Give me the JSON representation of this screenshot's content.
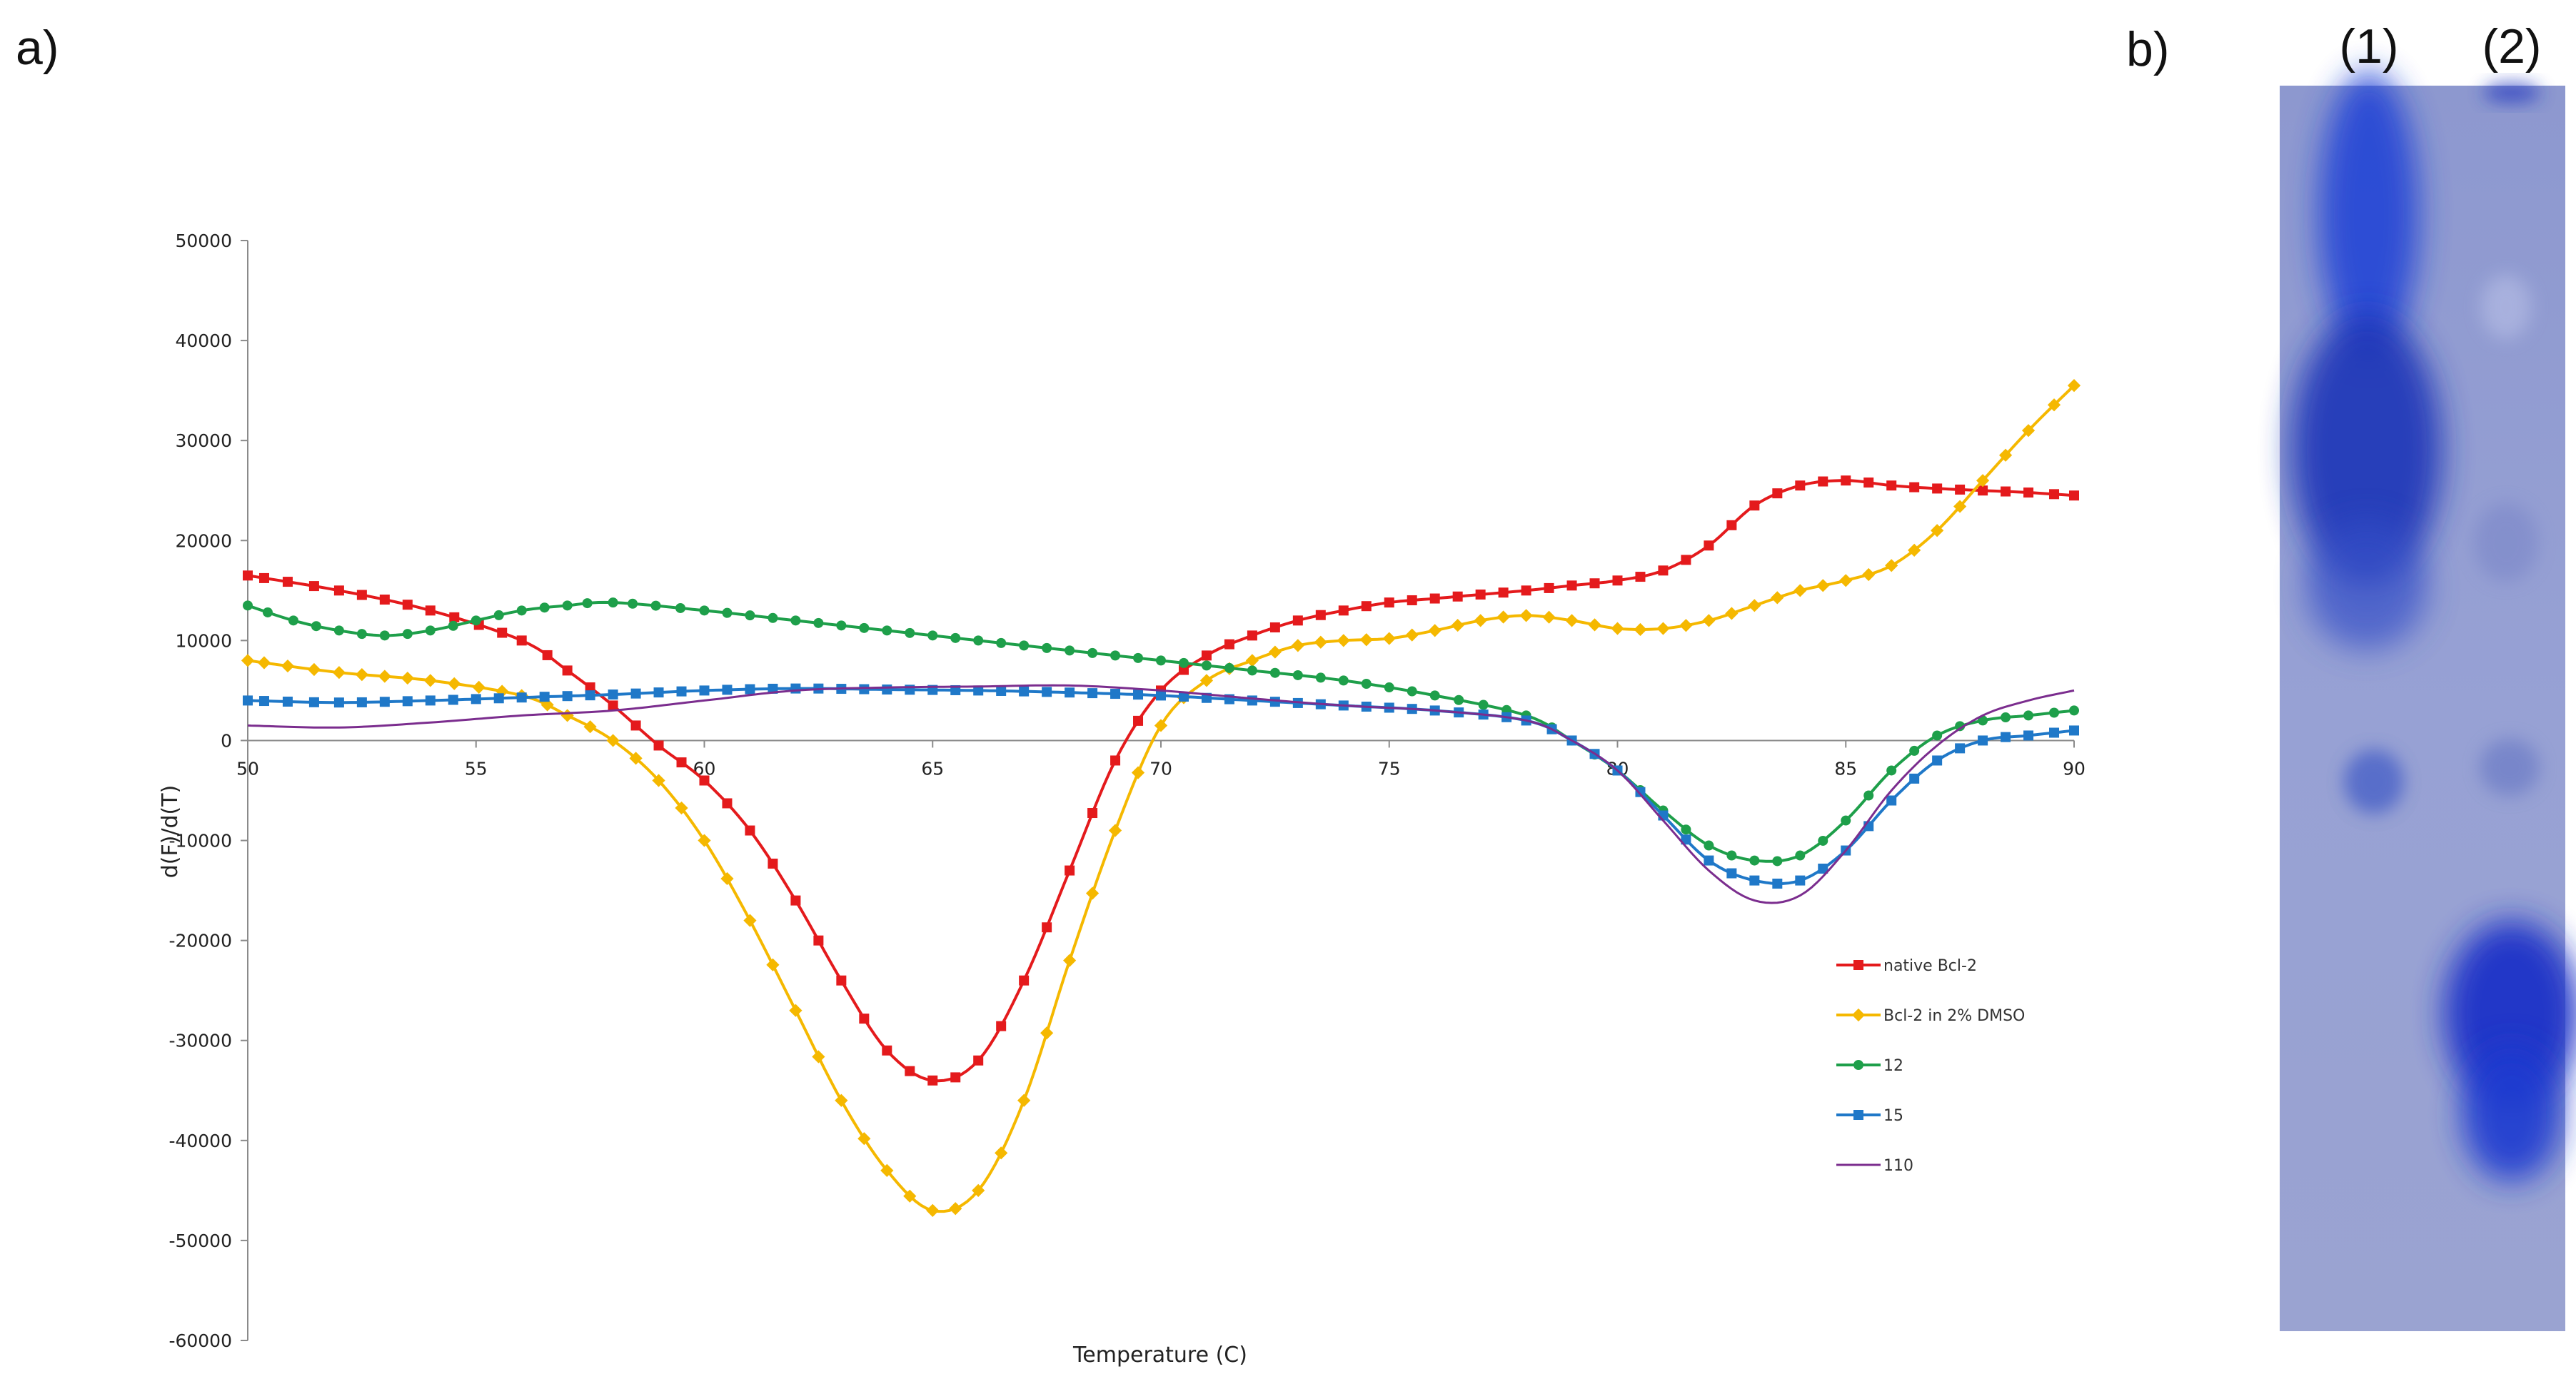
{
  "figure": {
    "panel_a": "a)",
    "panel_b": "b)"
  },
  "chart_data": {
    "type": "line",
    "title": "",
    "xlabel": "Temperature  (C)",
    "ylabel": "d(F)/d(T)",
    "xlim": [
      50,
      90
    ],
    "ylim": [
      -60000,
      50000
    ],
    "xticks": [
      50,
      55,
      60,
      65,
      70,
      75,
      80,
      85,
      90
    ],
    "yticks": [
      50000,
      40000,
      30000,
      20000,
      10000,
      0,
      -10000,
      -20000,
      -30000,
      -40000,
      -50000,
      -60000
    ],
    "grid": false,
    "legend_position": "lower-right",
    "series": [
      {
        "name": "native Bcl-2",
        "color": "#e41a1c",
        "marker": "square",
        "x": [
          50,
          52,
          54,
          56,
          57,
          58,
          59,
          60,
          61,
          62,
          63,
          64,
          65,
          66,
          67,
          68,
          69,
          70,
          71,
          72,
          73,
          74,
          75,
          76,
          77,
          78,
          79,
          80,
          81,
          82,
          83,
          84,
          85,
          86,
          87,
          88,
          89,
          90
        ],
        "y": [
          16500,
          15000,
          13000,
          10000,
          7000,
          3500,
          -500,
          -4000,
          -9000,
          -16000,
          -24000,
          -31000,
          -34000,
          -32000,
          -24000,
          -13000,
          -2000,
          5000,
          8500,
          10500,
          12000,
          13000,
          13800,
          14200,
          14600,
          15000,
          15500,
          16000,
          17000,
          19500,
          23500,
          25500,
          26000,
          25500,
          25200,
          25000,
          24800,
          24500
        ]
      },
      {
        "name": "Bcl-2 in 2% DMSO",
        "color": "#f5b800",
        "marker": "diamond",
        "x": [
          50,
          52,
          54,
          56,
          57,
          58,
          59,
          60,
          61,
          62,
          63,
          64,
          65,
          66,
          67,
          68,
          69,
          70,
          71,
          72,
          73,
          74,
          75,
          76,
          77,
          78,
          79,
          80,
          81,
          82,
          83,
          84,
          85,
          86,
          87,
          88,
          89,
          90
        ],
        "y": [
          8000,
          6800,
          6000,
          4500,
          2500,
          0,
          -4000,
          -10000,
          -18000,
          -27000,
          -36000,
          -43000,
          -47000,
          -45000,
          -36000,
          -22000,
          -9000,
          1500,
          6000,
          8000,
          9500,
          10000,
          10200,
          11000,
          12000,
          12500,
          12000,
          11200,
          11200,
          12000,
          13500,
          15000,
          16000,
          17500,
          21000,
          26000,
          31000,
          35500
        ]
      },
      {
        "name": "12",
        "color": "#1e9f4a",
        "marker": "circle",
        "x": [
          50,
          51,
          52,
          53,
          54,
          55,
          56,
          57,
          58,
          60,
          62,
          64,
          66,
          68,
          70,
          72,
          74,
          76,
          78,
          79,
          80,
          81,
          82,
          83,
          84,
          85,
          86,
          87,
          88,
          89,
          90
        ],
        "y": [
          13500,
          12000,
          11000,
          10500,
          11000,
          12000,
          13000,
          13500,
          13800,
          13000,
          12000,
          11000,
          10000,
          9000,
          8000,
          7000,
          6000,
          4500,
          2500,
          0,
          -3000,
          -7000,
          -10500,
          -12000,
          -11500,
          -8000,
          -3000,
          500,
          2000,
          2500,
          3000
        ]
      },
      {
        "name": "15",
        "color": "#1f78c8",
        "marker": "square",
        "x": [
          50,
          52,
          54,
          56,
          58,
          60,
          62,
          64,
          66,
          68,
          70,
          72,
          74,
          76,
          78,
          79,
          80,
          81,
          82,
          83,
          84,
          85,
          86,
          87,
          88,
          89,
          90
        ],
        "y": [
          4000,
          3800,
          4000,
          4300,
          4600,
          5000,
          5200,
          5100,
          5000,
          4800,
          4500,
          4000,
          3500,
          3000,
          2000,
          0,
          -3000,
          -7500,
          -12000,
          -14000,
          -14000,
          -11000,
          -6000,
          -2000,
          0,
          500,
          1000
        ]
      },
      {
        "name": "110",
        "color": "#7b2d8e",
        "marker": "none",
        "x": [
          50,
          52,
          54,
          56,
          58,
          60,
          62,
          64,
          66,
          68,
          70,
          72,
          74,
          76,
          78,
          79,
          80,
          81,
          82,
          83,
          84,
          85,
          86,
          87,
          88,
          89,
          90
        ],
        "y": [
          1500,
          1300,
          1800,
          2500,
          3000,
          4000,
          5000,
          5300,
          5400,
          5500,
          5000,
          4200,
          3500,
          3000,
          2000,
          0,
          -3000,
          -8000,
          -13000,
          -16000,
          -15500,
          -11000,
          -5000,
          -500,
          2500,
          4000,
          5000
        ]
      }
    ]
  },
  "gel": {
    "lanes": [
      "(1)",
      "(2)"
    ]
  }
}
